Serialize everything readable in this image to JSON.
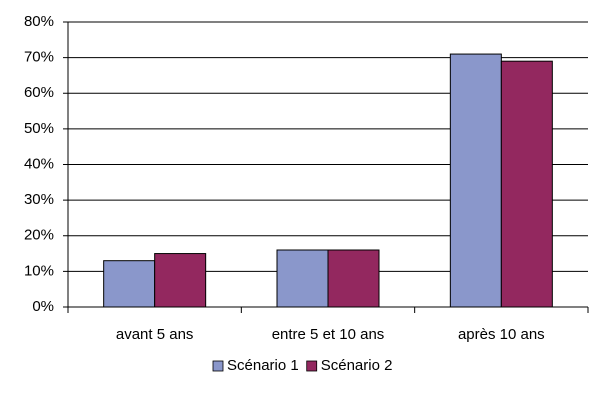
{
  "chart_data": {
    "type": "bar",
    "categories": [
      "avant 5 ans",
      "entre 5 et 10 ans",
      "après 10 ans"
    ],
    "series": [
      {
        "name": "Scénario 1",
        "color": "#8a97cb",
        "values": [
          13,
          16,
          71
        ]
      },
      {
        "name": "Scénario 2",
        "color": "#93285f",
        "values": [
          15,
          16,
          69
        ]
      }
    ],
    "ylim": [
      0,
      80
    ],
    "yticks": [
      {
        "value": 0,
        "label": "0%"
      },
      {
        "value": 10,
        "label": "10%"
      },
      {
        "value": 20,
        "label": "20%"
      },
      {
        "value": 30,
        "label": "30%"
      },
      {
        "value": 40,
        "label": "40%"
      },
      {
        "value": 50,
        "label": "50%"
      },
      {
        "value": 60,
        "label": "60%"
      },
      {
        "value": 70,
        "label": "70%"
      },
      {
        "value": 80,
        "label": "80%"
      }
    ],
    "grid": true,
    "legend": "bottom"
  }
}
